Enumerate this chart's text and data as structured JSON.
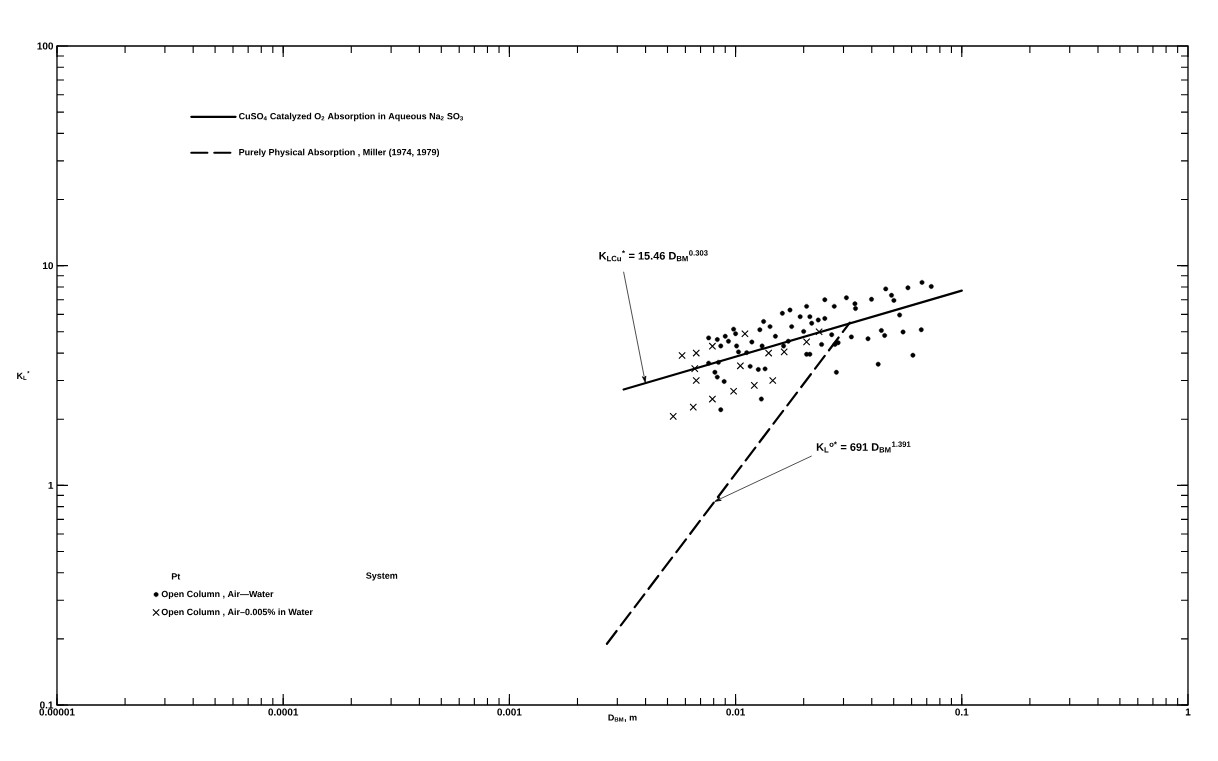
{
  "chart_data": {
    "type": "scatter",
    "log": "xy",
    "xlabel": "D$_{BM}$, m",
    "ylabel": "K$_{L}$$^{*}$",
    "xlim": [
      1e-05,
      1
    ],
    "ylim": [
      0.1,
      100
    ],
    "xticks": [
      {
        "value": 1e-05,
        "label": "0.00001"
      },
      {
        "value": 0.0001,
        "label": "0.0001"
      },
      {
        "value": 0.001,
        "label": "0.001"
      },
      {
        "value": 0.01,
        "label": "0.01"
      },
      {
        "value": 0.1,
        "label": "0.1"
      },
      1
    ],
    "yticks": [
      0.1,
      1,
      10,
      100
    ],
    "grid": false,
    "legend": "left",
    "annotations": [
      "Pt",
      "System",
      {
        "text": "K$_{LCu}$$^{*}$ = 15.46 D$_{BM}$$^{0.303}$",
        "x": 0.004,
        "y": 2.9
      },
      {
        "text": "K$_{L}$$^{o*}$ = 691 D$_{BM}$$^{1.391}$",
        "x": 0.008,
        "y": 0.84
      }
    ],
    "series": [
      {
        "type": "line",
        "name": "CuSO$_{4}$ Catalyzed O$_{2}$ Absorption in Aqueous Na$_{2}$ SO$_{3}$",
        "color": "#000000",
        "line_style": "solid",
        "marker": "none",
        "x": [
          0.0032,
          0.1
        ],
        "values": [
          2.73,
          7.7
        ]
      },
      {
        "type": "line",
        "name": "Purely Physical Absorption , Miller (1974, 1979)",
        "color": "#000000",
        "line_style": "dashed",
        "marker": "none",
        "x": [
          0.0027,
          0.032
        ],
        "values": [
          0.19,
          5.5
        ]
      },
      {
        "name": "Open Column , Air—Water",
        "color": "#000000",
        "marker": "circle",
        "x": [
          0.0076,
          0.0083,
          0.009,
          0.0098,
          0.0093,
          0.01,
          0.0086,
          0.0101,
          0.0103,
          0.0112,
          0.0118,
          0.0131,
          0.0128,
          0.0133,
          0.0142,
          0.015,
          0.0161,
          0.0174,
          0.0177,
          0.0193,
          0.0206,
          0.0213,
          0.0217,
          0.0232,
          0.0248,
          0.02,
          0.0206,
          0.0213,
          0.024,
          0.0266,
          0.0275,
          0.0284,
          0.0248,
          0.0273,
          0.0309,
          0.0337,
          0.0339,
          0.0399,
          0.0461,
          0.0489,
          0.0501,
          0.0578,
          0.0667,
          0.0733,
          0.0531,
          0.0441,
          0.0456,
          0.055,
          0.0662,
          0.0385,
          0.0325,
          0.0608,
          0.0427,
          0.0279,
          0.013,
          0.0086,
          0.0081,
          0.0083,
          0.0089,
          0.0126,
          0.0135,
          0.0116,
          0.0084,
          0.0076,
          0.0171,
          0.0163
        ],
        "values": [
          4.69,
          4.61,
          4.77,
          5.14,
          4.53,
          4.9,
          4.31,
          4.31,
          4.05,
          4.02,
          4.49,
          4.31,
          5.11,
          5.57,
          5.28,
          4.77,
          6.07,
          6.28,
          5.28,
          5.86,
          6.53,
          5.86,
          5.47,
          5.66,
          5.75,
          5.02,
          3.95,
          3.95,
          4.38,
          4.85,
          4.38,
          4.46,
          7.0,
          6.53,
          7.14,
          6.71,
          6.38,
          7.03,
          7.84,
          7.33,
          6.95,
          7.93,
          8.39,
          8.04,
          5.96,
          5.07,
          4.81,
          4.99,
          5.11,
          4.65,
          4.74,
          3.91,
          3.56,
          3.27,
          2.47,
          2.21,
          3.27,
          3.11,
          2.97,
          3.37,
          3.39,
          3.48,
          3.63,
          3.6,
          4.53,
          4.31
        ]
      },
      {
        "name": "Open Column , Air–0.005% in Water",
        "color": "#000000",
        "marker": "cross",
        "x": [
          0.0058,
          0.0067,
          0.0079,
          0.011,
          0.0066,
          0.0067,
          0.0105,
          0.014,
          0.0164,
          0.0206,
          0.0234,
          0.0053,
          0.0065,
          0.0079,
          0.0098,
          0.0121,
          0.0146
        ],
        "values": [
          3.9,
          4.0,
          4.3,
          4.9,
          3.4,
          3.0,
          3.5,
          4.0,
          4.05,
          4.5,
          5.0,
          2.06,
          2.27,
          2.47,
          2.68,
          2.85,
          3.0
        ]
      }
    ]
  }
}
